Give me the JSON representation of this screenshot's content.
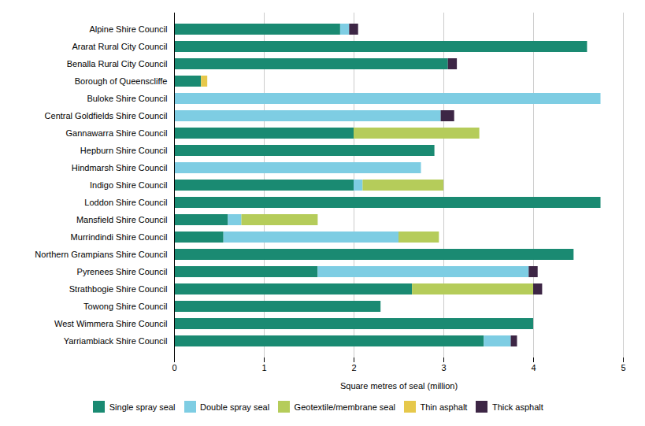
{
  "chart_data": {
    "type": "bar",
    "orientation": "horizontal",
    "stacked": true,
    "xlabel": "Square metres of seal (million)",
    "categories": [
      "Alpine Shire Council",
      "Ararat Rural City Council",
      "Benalla Rural City Council",
      "Borough of Queenscliffe",
      "Buloke Shire Council",
      "Central Goldfields Shire Council",
      "Gannawarra Shire Council",
      "Hepburn Shire Council",
      "Hindmarsh Shire Council",
      "Indigo Shire Council",
      "Loddon Shire Council",
      "Mansfield Shire Council",
      "Murrindindi Shire Council",
      "Northern Grampians Shire Council",
      "Pyrenees Shire Council",
      "Strathbogie Shire Council",
      "Towong Shire Council",
      "West Wimmera Shire Council",
      "Yarriambiack Shire Council"
    ],
    "series": [
      {
        "name": "Single spray seal",
        "color": "#1a8a72",
        "values": [
          1.85,
          4.6,
          3.05,
          0.3,
          0.0,
          0.0,
          2.0,
          2.9,
          0.0,
          2.0,
          4.75,
          0.6,
          0.55,
          4.45,
          1.6,
          2.65,
          2.3,
          4.0,
          3.45
        ]
      },
      {
        "name": "Double spray seal",
        "color": "#7ecde3",
        "values": [
          0.1,
          0.0,
          0.0,
          0.0,
          4.75,
          2.97,
          0.0,
          0.0,
          2.75,
          0.1,
          0.0,
          0.15,
          1.95,
          0.0,
          2.35,
          0.0,
          0.0,
          0.0,
          0.3
        ]
      },
      {
        "name": "Geotextile/membrane seal",
        "color": "#b5cc5a",
        "values": [
          0.0,
          0.0,
          0.0,
          0.0,
          0.0,
          0.0,
          1.4,
          0.0,
          0.0,
          0.9,
          0.0,
          0.85,
          0.45,
          0.0,
          0.0,
          1.35,
          0.0,
          0.0,
          0.0
        ]
      },
      {
        "name": "Thin asphalt",
        "color": "#e6c84b",
        "values": [
          0.0,
          0.0,
          0.0,
          0.07,
          0.0,
          0.0,
          0.0,
          0.0,
          0.0,
          0.0,
          0.0,
          0.0,
          0.0,
          0.0,
          0.0,
          0.0,
          0.0,
          0.0,
          0.0
        ]
      },
      {
        "name": "Thick asphalt",
        "color": "#3d2645",
        "values": [
          0.1,
          0.0,
          0.1,
          0.0,
          0.0,
          0.15,
          0.0,
          0.0,
          0.0,
          0.0,
          0.0,
          0.0,
          0.0,
          0.0,
          0.1,
          0.1,
          0.0,
          0.0,
          0.07
        ]
      }
    ],
    "xlim": [
      0,
      5
    ],
    "xticks": [
      0,
      1,
      2,
      3,
      4,
      5
    ],
    "grid": true,
    "legend": "bottom"
  }
}
